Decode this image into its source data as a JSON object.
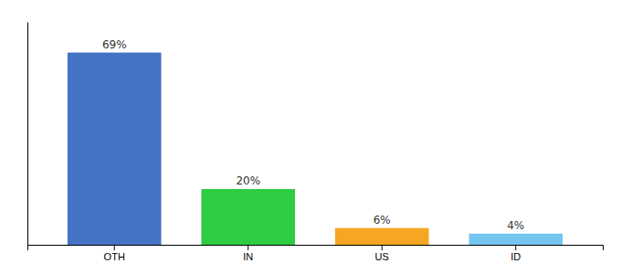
{
  "chart_data": {
    "type": "bar",
    "categories": [
      "OTH",
      "IN",
      "US",
      "ID"
    ],
    "values": [
      69,
      20,
      6,
      4
    ],
    "value_labels": [
      "69%",
      "20%",
      "6%",
      "4%"
    ],
    "colors": [
      "#4472c4",
      "#2ecc40",
      "#f5a623",
      "#74c6f0"
    ],
    "ylim": [
      0,
      80
    ],
    "tick_labels": "x",
    "data_labels": true
  }
}
